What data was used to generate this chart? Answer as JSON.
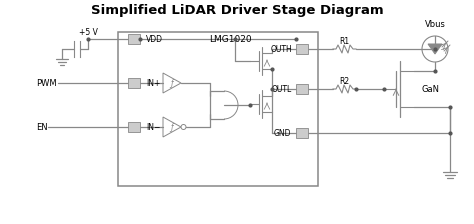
{
  "title": "Simplified LiDAR Driver Stage Diagram",
  "title_fontsize": 9.5,
  "title_fontweight": "bold",
  "bg_color": "#ffffff",
  "line_color": "#888888",
  "text_color": "#000000",
  "fig_width": 4.74,
  "fig_height": 2.24,
  "dpi": 100,
  "labels": {
    "title_text": "Simplified LiDAR Driver Stage Diagram",
    "VDD": "VDD",
    "LMG1020": "LMG1020",
    "OUTH": "OUTH",
    "OUTL": "OUTL",
    "GND": "GND",
    "IN_plus": "IN+",
    "IN_minus": "IN−",
    "R1": "R1",
    "R2": "R2",
    "Vbus": "Vbus",
    "GaN": "GaN",
    "PWM": "PWM",
    "EN": "EN",
    "V5": "+5 V"
  }
}
